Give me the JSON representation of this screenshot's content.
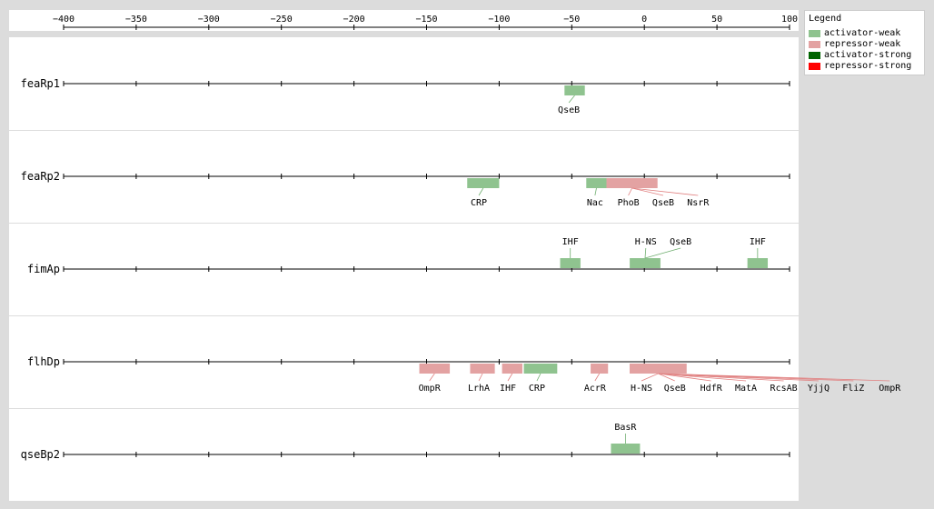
{
  "colors": {
    "activator_weak": "#8fc38f",
    "repressor_weak": "#e3a2a2",
    "activator_strong": "#006400",
    "repressor_strong": "#ff0000"
  },
  "axis": {
    "min": -400,
    "max": 100,
    "ticks": [
      "−400",
      "−350",
      "−300",
      "−250",
      "−200",
      "−150",
      "−100",
      "−50",
      "0",
      "50",
      "100"
    ]
  },
  "legend": {
    "title": "Legend",
    "items": [
      {
        "label": "activator-weak",
        "color": "#8fc38f"
      },
      {
        "label": "repressor-weak",
        "color": "#e3a2a2"
      },
      {
        "label": "activator-strong",
        "color": "#006400"
      },
      {
        "label": "repressor-strong",
        "color": "#ff0000"
      }
    ]
  },
  "promoters": [
    {
      "name": "feaRp1",
      "sites": [
        {
          "label": "QseB",
          "start": -55,
          "end": -41,
          "type": "activator-weak",
          "placement": "below",
          "label_pos": -52
        }
      ]
    },
    {
      "name": "feaRp2",
      "sites": [
        {
          "label": "CRP",
          "start": -122,
          "end": -100,
          "type": "activator-weak",
          "placement": "below",
          "label_pos": -114
        },
        {
          "label": "Nac",
          "start": -40,
          "end": -26,
          "type": "activator-weak",
          "placement": "below",
          "label_pos": -34
        },
        {
          "label": "PhoB",
          "start": -26,
          "end": 9,
          "type": "repressor-weak",
          "placement": "below",
          "label_pos": -11
        },
        {
          "label": "QseB",
          "start": -26,
          "end": 9,
          "type": "repressor-weak",
          "placement": "below",
          "label_pos": 13
        },
        {
          "label": "NsrR",
          "start": -26,
          "end": 9,
          "type": "repressor-weak",
          "placement": "below",
          "label_pos": 37
        }
      ]
    },
    {
      "name": "fimAp",
      "sites": [
        {
          "label": "IHF",
          "start": -58,
          "end": -44,
          "type": "activator-weak",
          "placement": "above",
          "label_pos": -51
        },
        {
          "label": "H-NS",
          "start": -10,
          "end": 11,
          "type": "activator-weak",
          "placement": "above",
          "label_pos": 1
        },
        {
          "label": "QseB",
          "start": -10,
          "end": 11,
          "type": "activator-weak",
          "placement": "above",
          "label_pos": 25
        },
        {
          "label": "IHF",
          "start": 71,
          "end": 85,
          "type": "activator-weak",
          "placement": "above",
          "label_pos": 78
        }
      ]
    },
    {
      "name": "flhDp",
      "sites": [
        {
          "label": "OmpR",
          "start": -155,
          "end": -134,
          "type": "repressor-weak",
          "placement": "below",
          "label_pos": -148
        },
        {
          "label": "LrhA",
          "start": -120,
          "end": -103,
          "type": "repressor-weak",
          "placement": "below",
          "label_pos": -114
        },
        {
          "label": "IHF",
          "start": -98,
          "end": -84,
          "type": "repressor-weak",
          "placement": "below",
          "label_pos": -94
        },
        {
          "label": "CRP",
          "start": -83,
          "end": -60,
          "type": "activator-weak",
          "placement": "below",
          "label_pos": -74
        },
        {
          "label": "AcrR",
          "start": -37,
          "end": -25,
          "type": "repressor-weak",
          "placement": "below",
          "label_pos": -34
        },
        {
          "label": "H-NS",
          "start": -10,
          "end": 29,
          "type": "repressor-weak",
          "placement": "below",
          "label_pos": -2
        },
        {
          "label": "QseB",
          "start": -10,
          "end": 29,
          "type": "repressor-weak",
          "placement": "below",
          "label_pos": 21
        },
        {
          "label": "HdfR",
          "start": -10,
          "end": 29,
          "type": "repressor-weak",
          "placement": "below",
          "label_pos": 46
        },
        {
          "label": "MatA",
          "start": -10,
          "end": 29,
          "type": "repressor-weak",
          "placement": "below",
          "label_pos": 70
        },
        {
          "label": "RcsAB",
          "start": -10,
          "end": 29,
          "type": "repressor-weak",
          "placement": "below",
          "label_pos": 96
        },
        {
          "label": "YjjQ",
          "start": -10,
          "end": 29,
          "type": "repressor-weak",
          "placement": "below",
          "label_pos": 120
        },
        {
          "label": "FliZ",
          "start": -10,
          "end": 29,
          "type": "repressor-weak",
          "placement": "below",
          "label_pos": 144
        },
        {
          "label": "OmpR",
          "start": -10,
          "end": 29,
          "type": "repressor-weak",
          "placement": "below",
          "label_pos": 169
        }
      ]
    },
    {
      "name": "qseBp2",
      "sites": [
        {
          "label": "BasR",
          "start": -23,
          "end": -3,
          "type": "activator-weak",
          "placement": "above",
          "label_pos": -13
        }
      ]
    }
  ]
}
